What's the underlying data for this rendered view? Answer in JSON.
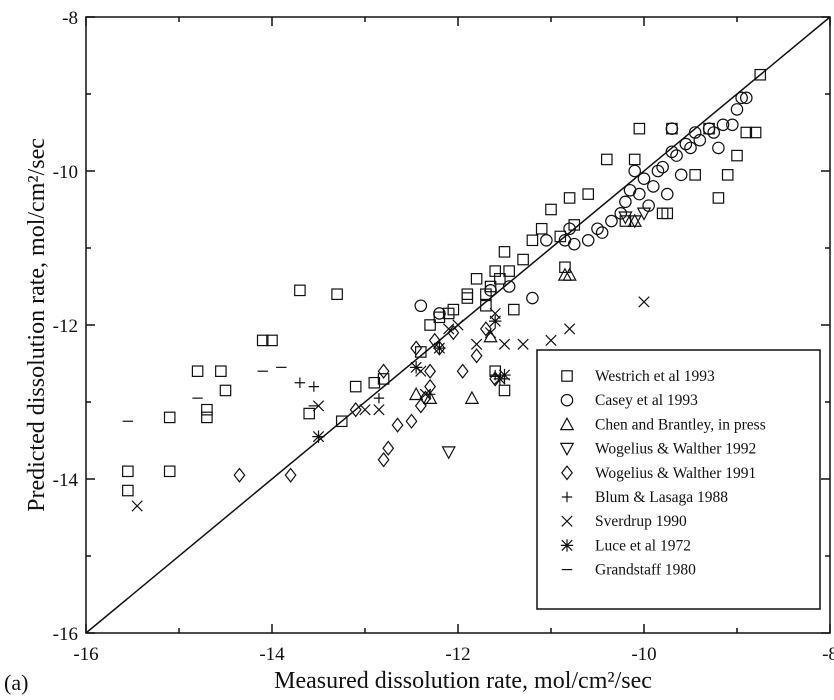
{
  "panel_label": "(a)",
  "chart_data": {
    "type": "scatter",
    "title": "",
    "xlabel": "Measured dissolution rate, mol/cm²/sec",
    "ylabel": "Predicted dissolution rate, mol/cm²/sec",
    "xlim": [
      -16,
      -8
    ],
    "ylim": [
      -16,
      -8
    ],
    "xticks": [
      -16,
      -14,
      -12,
      -10,
      -8
    ],
    "yticks": [
      -16,
      -14,
      -12,
      -10,
      -8
    ],
    "xtick_labels": [
      "-16",
      "-14",
      "-12",
      "-10",
      "-8"
    ],
    "ytick_labels": [
      "-16",
      "-14",
      "-12",
      "-10",
      "-8"
    ],
    "grid": false,
    "legend_position": "bottom-right",
    "reference_line": {
      "x": [
        -16,
        -8
      ],
      "y": [
        -16,
        -8
      ]
    },
    "series": [
      {
        "name": "Westrich et al 1993",
        "marker": "square",
        "points": [
          [
            -15.55,
            -13.9
          ],
          [
            -15.55,
            -14.15
          ],
          [
            -15.1,
            -13.2
          ],
          [
            -15.1,
            -13.9
          ],
          [
            -14.8,
            -12.6
          ],
          [
            -14.7,
            -13.1
          ],
          [
            -14.7,
            -13.2
          ],
          [
            -14.55,
            -12.6
          ],
          [
            -14.5,
            -12.85
          ],
          [
            -14.1,
            -12.2
          ],
          [
            -14.0,
            -12.2
          ],
          [
            -13.7,
            -11.55
          ],
          [
            -13.6,
            -13.15
          ],
          [
            -13.3,
            -11.6
          ],
          [
            -13.25,
            -13.25
          ],
          [
            -13.1,
            -12.8
          ],
          [
            -12.9,
            -12.75
          ],
          [
            -12.8,
            -12.7
          ],
          [
            -12.4,
            -12.35
          ],
          [
            -12.3,
            -12.0
          ],
          [
            -12.2,
            -11.9
          ],
          [
            -12.1,
            -11.85
          ],
          [
            -11.9,
            -11.6
          ],
          [
            -11.8,
            -11.4
          ],
          [
            -11.7,
            -11.6
          ],
          [
            -11.6,
            -11.3
          ],
          [
            -11.5,
            -11.05
          ],
          [
            -11.45,
            -11.3
          ],
          [
            -11.3,
            -11.15
          ],
          [
            -11.2,
            -10.9
          ],
          [
            -11.1,
            -10.75
          ],
          [
            -11.0,
            -10.5
          ],
          [
            -10.85,
            -11.25
          ],
          [
            -10.8,
            -10.35
          ],
          [
            -10.6,
            -10.3
          ],
          [
            -10.4,
            -9.85
          ],
          [
            -10.2,
            -10.65
          ],
          [
            -10.1,
            -9.85
          ],
          [
            -10.05,
            -9.45
          ],
          [
            -9.8,
            -10.55
          ],
          [
            -9.75,
            -10.55
          ],
          [
            -9.7,
            -9.45
          ],
          [
            -9.45,
            -10.05
          ],
          [
            -9.3,
            -9.45
          ],
          [
            -9.2,
            -10.35
          ],
          [
            -9.1,
            -10.05
          ],
          [
            -9.0,
            -9.8
          ],
          [
            -8.9,
            -9.5
          ],
          [
            -8.8,
            -9.5
          ],
          [
            -8.75,
            -8.75
          ],
          [
            -11.5,
            -12.85
          ],
          [
            -11.6,
            -12.6
          ],
          [
            -11.9,
            -11.65
          ],
          [
            -11.7,
            -11.75
          ],
          [
            -11.55,
            -11.4
          ],
          [
            -11.65,
            -11.5
          ],
          [
            -10.75,
            -10.7
          ],
          [
            -12.05,
            -11.8
          ],
          [
            -11.4,
            -11.8
          ],
          [
            -10.9,
            -10.85
          ]
        ]
      },
      {
        "name": "Casey et al 1993",
        "marker": "circle",
        "points": [
          [
            -12.4,
            -11.75
          ],
          [
            -12.2,
            -11.85
          ],
          [
            -11.65,
            -11.55
          ],
          [
            -11.45,
            -11.5
          ],
          [
            -11.2,
            -11.65
          ],
          [
            -11.05,
            -10.9
          ],
          [
            -10.85,
            -10.9
          ],
          [
            -10.8,
            -10.75
          ],
          [
            -10.75,
            -10.95
          ],
          [
            -10.6,
            -10.9
          ],
          [
            -10.5,
            -10.75
          ],
          [
            -10.45,
            -10.8
          ],
          [
            -10.35,
            -10.65
          ],
          [
            -10.25,
            -10.55
          ],
          [
            -10.2,
            -10.4
          ],
          [
            -10.15,
            -10.25
          ],
          [
            -10.05,
            -10.3
          ],
          [
            -10.0,
            -10.1
          ],
          [
            -9.95,
            -10.45
          ],
          [
            -9.9,
            -10.2
          ],
          [
            -9.85,
            -10.0
          ],
          [
            -9.8,
            -9.95
          ],
          [
            -9.75,
            -10.3
          ],
          [
            -9.7,
            -9.75
          ],
          [
            -9.65,
            -9.8
          ],
          [
            -9.6,
            -10.05
          ],
          [
            -9.55,
            -9.65
          ],
          [
            -9.5,
            -9.7
          ],
          [
            -9.45,
            -9.5
          ],
          [
            -9.4,
            -9.6
          ],
          [
            -9.3,
            -9.45
          ],
          [
            -9.25,
            -9.5
          ],
          [
            -9.2,
            -9.7
          ],
          [
            -9.15,
            -9.4
          ],
          [
            -9.05,
            -9.4
          ],
          [
            -9.0,
            -9.2
          ],
          [
            -8.95,
            -9.05
          ],
          [
            -8.9,
            -9.05
          ],
          [
            -10.1,
            -10.0
          ],
          [
            -9.7,
            -9.45
          ]
        ]
      },
      {
        "name": "Chen and Brantley, in press",
        "marker": "triangle-up",
        "points": [
          [
            -12.45,
            -12.9
          ],
          [
            -12.3,
            -12.95
          ],
          [
            -11.85,
            -12.95
          ],
          [
            -11.65,
            -12.15
          ],
          [
            -10.85,
            -11.35
          ],
          [
            -10.8,
            -11.35
          ],
          [
            -10.1,
            -10.65
          ]
        ]
      },
      {
        "name": "Wogelius & Walther 1992",
        "marker": "triangle-down",
        "points": [
          [
            -12.1,
            -13.65
          ],
          [
            -10.2,
            -10.6
          ],
          [
            -10.0,
            -10.55
          ],
          [
            -10.1,
            -10.65
          ]
        ]
      },
      {
        "name": "Wogelius & Walther 1991",
        "marker": "diamond",
        "points": [
          [
            -14.35,
            -13.95
          ],
          [
            -13.8,
            -13.95
          ],
          [
            -13.1,
            -13.1
          ],
          [
            -12.8,
            -12.6
          ],
          [
            -12.8,
            -13.75
          ],
          [
            -12.75,
            -13.6
          ],
          [
            -12.65,
            -13.3
          ],
          [
            -12.5,
            -13.25
          ],
          [
            -12.4,
            -13.05
          ],
          [
            -12.35,
            -12.95
          ],
          [
            -12.3,
            -12.8
          ],
          [
            -12.3,
            -12.6
          ],
          [
            -12.25,
            -12.2
          ],
          [
            -12.2,
            -12.3
          ],
          [
            -12.05,
            -12.1
          ],
          [
            -11.95,
            -12.6
          ],
          [
            -11.8,
            -12.4
          ],
          [
            -11.7,
            -12.05
          ],
          [
            -11.6,
            -12.7
          ],
          [
            -12.45,
            -12.3
          ]
        ]
      },
      {
        "name": "Blum & Lasaga 1988",
        "marker": "plus",
        "points": [
          [
            -13.7,
            -12.75
          ],
          [
            -13.55,
            -12.8
          ],
          [
            -12.85,
            -12.95
          ],
          [
            -12.3,
            -12.9
          ],
          [
            -11.5,
            -12.7
          ],
          [
            -11.6,
            -12.65
          ]
        ]
      },
      {
        "name": "Sverdrup 1990",
        "marker": "x",
        "points": [
          [
            -15.45,
            -14.35
          ],
          [
            -13.5,
            -13.05
          ],
          [
            -13.0,
            -13.1
          ],
          [
            -12.85,
            -13.1
          ],
          [
            -12.4,
            -12.6
          ],
          [
            -12.35,
            -12.9
          ],
          [
            -12.1,
            -12.05
          ],
          [
            -11.8,
            -12.25
          ],
          [
            -11.65,
            -12.1
          ],
          [
            -11.6,
            -11.85
          ],
          [
            -11.5,
            -12.25
          ],
          [
            -11.3,
            -12.25
          ],
          [
            -11.0,
            -12.2
          ],
          [
            -10.8,
            -12.05
          ],
          [
            -10.0,
            -11.7
          ],
          [
            -12.0,
            -12.0
          ]
        ]
      },
      {
        "name": "Luce et al 1972",
        "marker": "asterisk",
        "points": [
          [
            -13.5,
            -13.45
          ],
          [
            -12.45,
            -12.55
          ],
          [
            -12.2,
            -12.3
          ],
          [
            -11.6,
            -11.95
          ],
          [
            -11.55,
            -12.7
          ],
          [
            -11.5,
            -12.65
          ]
        ]
      },
      {
        "name": "Grandstaff 1980",
        "marker": "dash",
        "points": [
          [
            -15.55,
            -13.25
          ],
          [
            -14.8,
            -12.95
          ],
          [
            -14.1,
            -12.6
          ],
          [
            -13.9,
            -12.55
          ],
          [
            -13.55,
            -13.05
          ]
        ]
      }
    ]
  }
}
